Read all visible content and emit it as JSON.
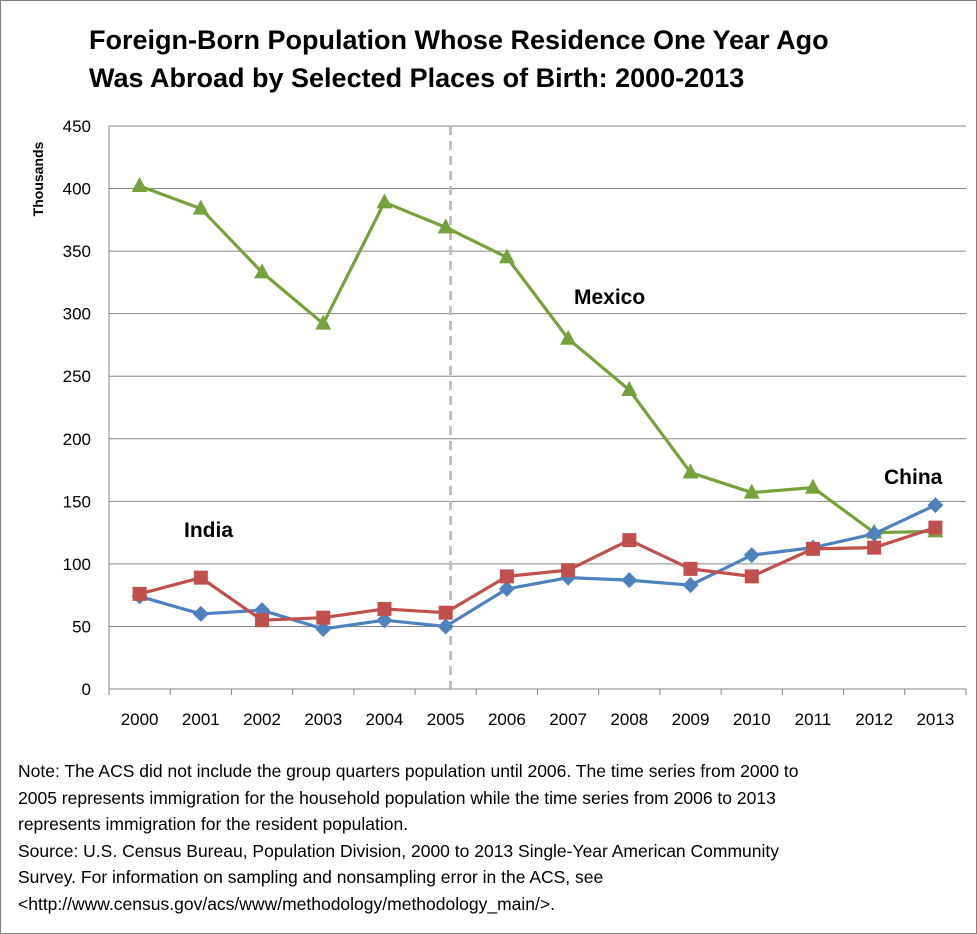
{
  "chart_data": {
    "type": "line",
    "title_lines": [
      "Foreign-Born Population Whose Residence One Year Ago",
      "Was Abroad by Selected Places of Birth: 2000-2013"
    ],
    "ylabel": "Thousands",
    "xlabel": "",
    "ylim": [
      0,
      450
    ],
    "yticks": [
      0,
      50,
      100,
      150,
      200,
      250,
      300,
      350,
      400,
      450
    ],
    "categories": [
      "2000",
      "2001",
      "2002",
      "2003",
      "2004",
      "2005",
      "2006",
      "2007",
      "2008",
      "2009",
      "2010",
      "2011",
      "2012",
      "2013"
    ],
    "grid": "horizontal",
    "reference_line": {
      "between": [
        "2005",
        "2006"
      ],
      "style": "dashed"
    },
    "series": [
      {
        "name": "Mexico",
        "color": "#77a13d",
        "marker": "triangle",
        "values": [
          402,
          384,
          333,
          292,
          389,
          369,
          345,
          280,
          239,
          173,
          157,
          161,
          125,
          126
        ]
      },
      {
        "name": "India",
        "color": "#4f81bd",
        "marker": "diamond",
        "values": [
          74,
          60,
          63,
          48,
          55,
          50,
          80,
          89,
          87,
          83,
          107,
          113,
          124,
          147
        ]
      },
      {
        "name": "China",
        "color": "#c0504d",
        "marker": "square",
        "values": [
          76,
          89,
          55,
          57,
          64,
          61,
          90,
          95,
          119,
          96,
          90,
          112,
          113,
          129
        ]
      }
    ],
    "annotations": [
      {
        "text": "Mexico",
        "series": "Mexico"
      },
      {
        "text": "India",
        "series": "India"
      },
      {
        "text": "China",
        "series": "China"
      }
    ]
  },
  "notes": [
    "Note: The ACS did not include the group quarters population until 2006. The time series from 2000 to",
    "2005 represents immigration for the household population while the time series from 2006 to 2013",
    "represents immigration for the resident population.",
    "Source: U.S. Census Bureau, Population Division, 2000 to 2013 Single-Year American Community",
    "Survey. For information on sampling and nonsampling error in the ACS, see",
    "<http://www.census.gov/acs/www/methodology/methodology_main/>."
  ]
}
